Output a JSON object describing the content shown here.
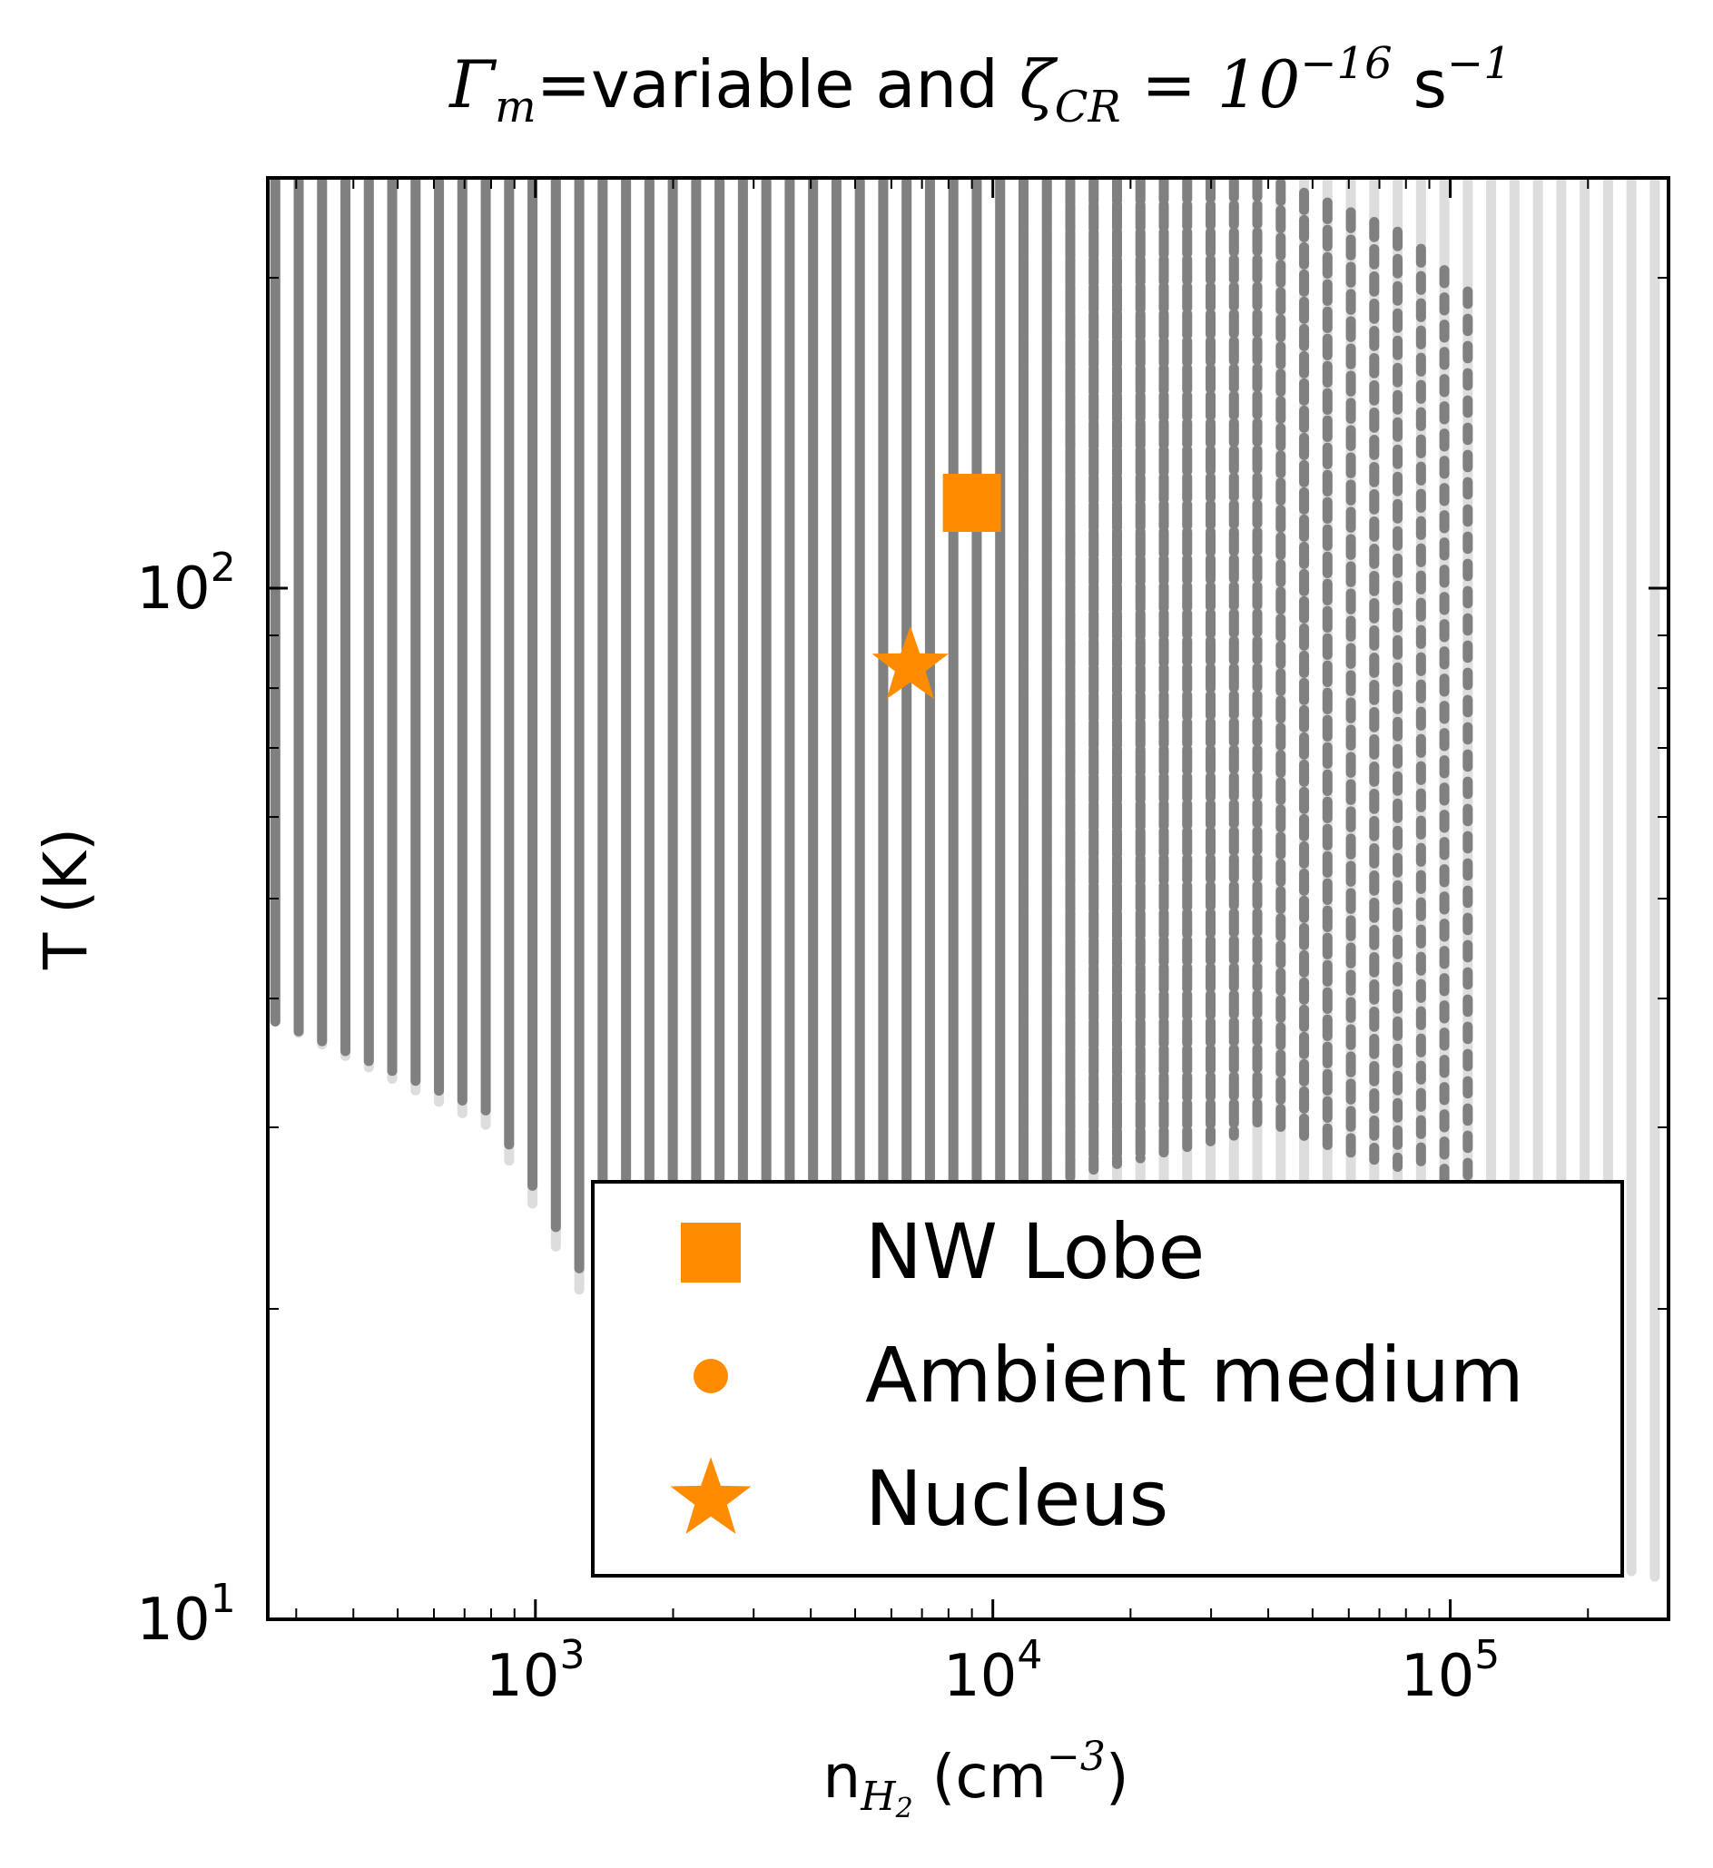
{
  "chart_data": {
    "type": "scatter",
    "title": {
      "gamma_symbol": "Γ",
      "gamma_sub": "m",
      "text_mid": "=variable and ",
      "zeta_symbol": "ζ",
      "zeta_sub": "CR",
      "equals": " = 10",
      "exp": "−16",
      "unit": " s",
      "unit_exp": "−1"
    },
    "xlabel": {
      "main": "n",
      "sub": "H",
      "subsub": "2",
      "unit": " (cm",
      "unit_exp": "−3",
      "close": ")"
    },
    "ylabel": "T (K)",
    "x_scale": "log",
    "y_scale": "log",
    "xlim": [
      260,
      300000
    ],
    "ylim": [
      10,
      250
    ],
    "x_ticks": [
      {
        "value": 1000,
        "base": "10",
        "exp": "3"
      },
      {
        "value": 10000,
        "base": "10",
        "exp": "4"
      },
      {
        "value": 100000,
        "base": "10",
        "exp": "5"
      }
    ],
    "y_ticks": [
      {
        "value": 10,
        "base": "10",
        "exp": "1"
      },
      {
        "value": 100,
        "base": "10",
        "exp": "2"
      }
    ],
    "grid": false,
    "legend_position": "lower-right",
    "colors": {
      "accent": "#ff8c00",
      "model_good": "#808080",
      "model_all": "#dddddd",
      "axis": "#000000"
    },
    "model_grid": {
      "n_min": 270,
      "n_max": 280000,
      "n_columns": 60,
      "t_max": 250,
      "lower_T_envelope": [
        [
          270,
          38
        ],
        [
          800,
          30
        ],
        [
          1400,
          19
        ],
        [
          2500,
          17
        ],
        [
          6000,
          15
        ],
        [
          20000,
          13
        ],
        [
          120000,
          12
        ],
        [
          280000,
          11
        ]
      ],
      "good_region_lower_envelope": [
        [
          270,
          38
        ],
        [
          800,
          31
        ],
        [
          1400,
          20
        ],
        [
          2500,
          17
        ],
        [
          6000,
          20
        ],
        [
          15000,
          27
        ],
        [
          40000,
          30
        ],
        [
          115000,
          26
        ]
      ],
      "good_region_upper_edge_dense": [
        [
          270,
          250
        ],
        [
          20000,
          250
        ],
        [
          40000,
          250
        ],
        [
          80000,
          220
        ],
        [
          115000,
          190
        ]
      ],
      "good_region_max_n": 115000
    },
    "series": [
      {
        "name": "NW Lobe",
        "marker": "square",
        "points": [
          [
            9000,
            121
          ]
        ]
      },
      {
        "name": "Ambient medium",
        "marker": "circle",
        "points": []
      },
      {
        "name": "Nucleus",
        "marker": "star",
        "points": [
          [
            6600,
            84
          ]
        ]
      }
    ]
  }
}
